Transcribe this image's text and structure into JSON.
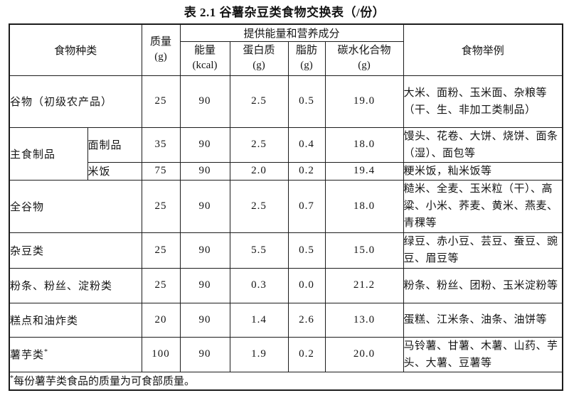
{
  "title": "表 2.1 谷薯杂豆类食物交换表（/份）",
  "table": {
    "header": {
      "food_type": "食物种类",
      "mass_line1": "质量",
      "mass_line2": "(g)",
      "nutrition_group": "提供能量和营养成分",
      "sub": [
        {
          "line1": "能量",
          "line2": "(kcal)"
        },
        {
          "line1": "蛋白质",
          "line2": "(g)"
        },
        {
          "line1": "脂肪",
          "line2": "(g)"
        },
        {
          "line1": "碳水化合物",
          "line2": "(g)"
        }
      ],
      "examples": "食物举例"
    },
    "rows": [
      {
        "type": "谷物（初级农产品）",
        "mass": "25",
        "energy": "90",
        "protein": "2.5",
        "fat": "0.5",
        "carb": "19.0",
        "examples": "大米、面粉、玉米面、杂粮等（干、生、非加工类制品）"
      },
      {
        "group": "主食制品",
        "type": "面制品",
        "mass": "35",
        "energy": "90",
        "protein": "2.5",
        "fat": "0.4",
        "carb": "18.0",
        "examples": "馒头、花卷、大饼、烧饼、面条（湿）、面包等"
      },
      {
        "type": "米饭",
        "mass": "75",
        "energy": "90",
        "protein": "2.0",
        "fat": "0.2",
        "carb": "19.4",
        "examples": "粳米饭，籼米饭等"
      },
      {
        "type": "全谷物",
        "mass": "25",
        "energy": "90",
        "protein": "2.5",
        "fat": "0.7",
        "carb": "18.0",
        "examples": "糙米、全麦、玉米粒（干）、高粱、小米、荞麦、黄米、燕麦、青稞等"
      },
      {
        "type": "杂豆类",
        "mass": "25",
        "energy": "90",
        "protein": "5.5",
        "fat": "0.5",
        "carb": "15.0",
        "examples": "绿豆、赤小豆、芸豆、蚕豆、豌豆、眉豆等"
      },
      {
        "type": "粉条、粉丝、淀粉类",
        "mass": "25",
        "energy": "90",
        "protein": "0.3",
        "fat": "0.0",
        "carb": "21.2",
        "examples": "粉条、粉丝、团粉、玉米淀粉等"
      },
      {
        "type": "糕点和油炸类",
        "mass": "20",
        "energy": "90",
        "protein": "1.4",
        "fat": "2.6",
        "carb": "13.0",
        "examples": "蛋糕、江米条、油条、油饼等"
      },
      {
        "type": "薯芋类",
        "marker": "*",
        "mass": "100",
        "energy": "90",
        "protein": "1.9",
        "fat": "0.2",
        "carb": "20.0",
        "examples": "马铃薯、甘薯、木薯、山药、芋头、大薯、豆薯等"
      }
    ],
    "footnote": {
      "marker": "*",
      "text": "每份薯芋类食品的质量为可食部质量。"
    }
  }
}
